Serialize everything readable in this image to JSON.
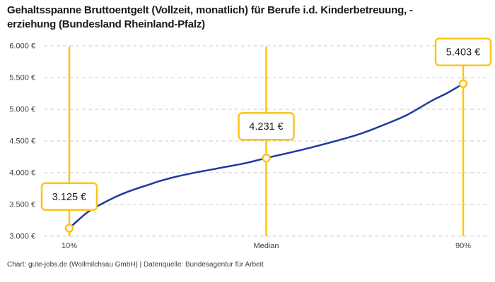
{
  "title": "Gehaltsspanne Bruttoentgelt (Vollzeit, monatlich) für Berufe i.d. Kinderbetreuung, -\nerziehung (Bundesland Rheinland-Pfalz)",
  "footer": {
    "credit": "Chart: gute-jobs.de (Wollmilchsau GmbH) | Datenquelle: Bundesagentur für Arbeit"
  },
  "chart_data": {
    "type": "line",
    "title": "Gehaltsspanne Bruttoentgelt (Vollzeit, monatlich) für Berufe i.d. Kinderbetreuung, -erziehung (Bundesland Rheinland-Pfalz)",
    "categories": [
      "10%",
      "Median",
      "90%"
    ],
    "values": [
      3125,
      4231,
      5403
    ],
    "value_labels": [
      "3.125 €",
      "4.231 €",
      "5.403 €"
    ],
    "ylim": [
      3000,
      6000
    ],
    "y_ticks": [
      {
        "label": "3.000 €",
        "value": 3000
      },
      {
        "label": "3.500 €",
        "value": 3500
      },
      {
        "label": "4.000 €",
        "value": 4000
      },
      {
        "label": "4.500 €",
        "value": 4500
      },
      {
        "label": "5.000 €",
        "value": 5000
      },
      {
        "label": "5.500 €",
        "value": 5500
      },
      {
        "label": "6.000 €",
        "value": 6000
      }
    ],
    "grid": "horizontal-dashed",
    "legend": "none",
    "curve": [
      [
        0.0,
        3125
      ],
      [
        0.022,
        3250
      ],
      [
        0.048,
        3385
      ],
      [
        0.081,
        3505
      ],
      [
        0.111,
        3600
      ],
      [
        0.138,
        3675
      ],
      [
        0.169,
        3745
      ],
      [
        0.201,
        3810
      ],
      [
        0.228,
        3865
      ],
      [
        0.273,
        3940
      ],
      [
        0.318,
        4000
      ],
      [
        0.363,
        4052
      ],
      [
        0.408,
        4105
      ],
      [
        0.452,
        4158
      ],
      [
        0.5,
        4231
      ],
      [
        0.609,
        4390
      ],
      [
        0.727,
        4590
      ],
      [
        0.793,
        4741
      ],
      [
        0.856,
        4907
      ],
      [
        0.919,
        5130
      ],
      [
        0.959,
        5255
      ],
      [
        1.0,
        5403
      ]
    ],
    "colors": {
      "curve": "#1E3A9F",
      "accent": "#FCC419",
      "grid": "#CBCBCB",
      "tick_text": "#3F3F3F",
      "annotation_text": "#1A1A1A",
      "marker_fill": "#FFFFFF",
      "background": "#FFFFFF"
    }
  }
}
